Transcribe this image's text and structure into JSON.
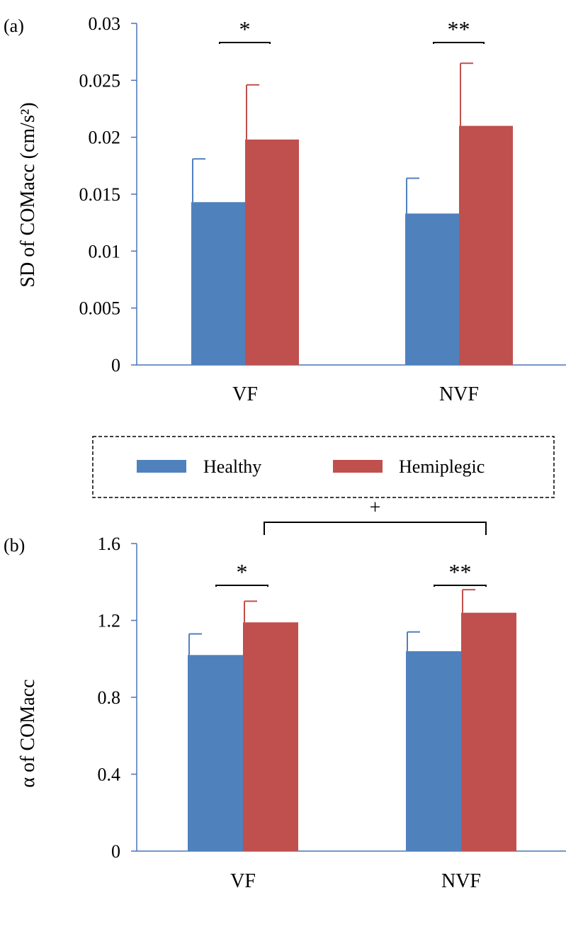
{
  "colors": {
    "healthy": "#4F81BD",
    "hemiplegic": "#C0504D",
    "axis": "#4A74B8",
    "bracket": "#000000"
  },
  "legend": {
    "entries": [
      "Healthy",
      "Hemiplegic"
    ],
    "style": "dashed-box",
    "placement": "between-panels"
  },
  "chart_data": [
    {
      "panel_label": "(a)",
      "type": "bar",
      "categories": [
        "VF",
        "NVF"
      ],
      "ylabel": "SD of COMacc (cm/s²)",
      "ylim": [
        0,
        0.03
      ],
      "yticks": [
        0,
        0.005,
        0.01,
        0.015,
        0.02,
        0.025,
        0.03
      ],
      "ytick_labels": [
        "0",
        "0.005",
        "0.01",
        "0.015",
        "0.02",
        "0.025",
        "0.03"
      ],
      "grid": false,
      "series": [
        {
          "name": "Healthy",
          "values": [
            0.0143,
            0.0133
          ],
          "errors": [
            0.0038,
            0.0031
          ]
        },
        {
          "name": "Hemiplegic",
          "values": [
            0.0198,
            0.021
          ],
          "errors": [
            0.0048,
            0.0055
          ]
        }
      ],
      "annotations": [
        {
          "text": "*",
          "category": "VF",
          "between": [
            "Healthy",
            "Hemiplegic"
          ]
        },
        {
          "text": "**",
          "category": "NVF",
          "between": [
            "Healthy",
            "Hemiplegic"
          ]
        }
      ]
    },
    {
      "panel_label": "(b)",
      "type": "bar",
      "categories": [
        "VF",
        "NVF"
      ],
      "ylabel": "α of COMacc",
      "ylim": [
        0,
        1.6
      ],
      "yticks": [
        0,
        0.4,
        0.8,
        1.2,
        1.6
      ],
      "ytick_labels": [
        "0",
        "0.4",
        "0.8",
        "1.2",
        "1.6"
      ],
      "grid": false,
      "series": [
        {
          "name": "Healthy",
          "values": [
            1.02,
            1.04
          ],
          "errors": [
            0.11,
            0.1
          ]
        },
        {
          "name": "Hemiplegic",
          "values": [
            1.19,
            1.24
          ],
          "errors": [
            0.11,
            0.12
          ]
        }
      ],
      "annotations": [
        {
          "text": "*",
          "category": "VF",
          "between": [
            "Healthy",
            "Hemiplegic"
          ]
        },
        {
          "text": "**",
          "category": "NVF",
          "between": [
            "Healthy",
            "Hemiplegic"
          ]
        },
        {
          "text": "+",
          "between_categories": [
            "VF",
            "NVF"
          ],
          "series": "Hemiplegic"
        }
      ]
    }
  ]
}
